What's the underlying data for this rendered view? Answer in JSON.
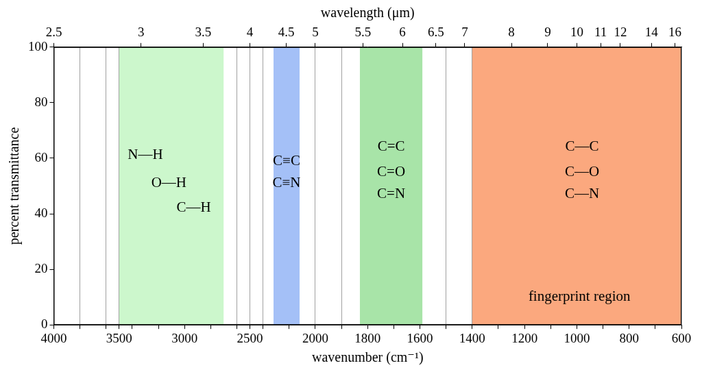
{
  "chart_data": {
    "type": "area",
    "xlabel": "wavenumber (cm⁻¹)",
    "x2label": "wavelength (μm)",
    "ylabel": "percent transmittance",
    "xlim": [
      4000,
      600
    ],
    "xbreak": 2000,
    "xticks": [
      4000,
      3500,
      3000,
      2500,
      2000,
      1800,
      1600,
      1400,
      1200,
      1000,
      800,
      600
    ],
    "xgrid_lines": [
      3800,
      3600,
      3400,
      3200,
      3000,
      2800,
      2600,
      2400,
      2200,
      2000,
      1900,
      1800,
      1700,
      1600,
      1500,
      1400,
      1300,
      1200,
      1100,
      1000,
      900,
      800,
      700
    ],
    "x2lim": [
      2.5,
      16.67
    ],
    "x2ticks": [
      2.5,
      3,
      3.5,
      4,
      4.5,
      5,
      5.5,
      6,
      6.5,
      7,
      8,
      9,
      10,
      11,
      12,
      14,
      16
    ],
    "ylim": [
      0,
      100
    ],
    "yticks": [
      0,
      20,
      40,
      60,
      80,
      100
    ],
    "grid": true,
    "bands": [
      {
        "from": 3500,
        "to": 2700,
        "color": "#ccf7cc"
      },
      {
        "from": 2320,
        "to": 2120,
        "color": "#a4c0f7"
      },
      {
        "from": 1830,
        "to": 1590,
        "color": "#a8e4a8"
      },
      {
        "from": 1400,
        "to": 600,
        "color": "#fba87e"
      }
    ],
    "annotations": [
      {
        "text": "N—H",
        "x": 3300,
        "y": 61
      },
      {
        "text": "O—H",
        "x": 3120,
        "y": 51
      },
      {
        "text": "C—H",
        "x": 2930,
        "y": 42
      },
      {
        "text": "C≡C",
        "x": 2220,
        "y": 59
      },
      {
        "text": "C≡N",
        "x": 2220,
        "y": 51
      },
      {
        "text": "C=C",
        "x": 1710,
        "y": 64
      },
      {
        "text": "C=O",
        "x": 1710,
        "y": 55
      },
      {
        "text": "C=N",
        "x": 1710,
        "y": 47
      },
      {
        "text": "C—C",
        "x": 980,
        "y": 64
      },
      {
        "text": "C—O",
        "x": 980,
        "y": 55
      },
      {
        "text": "C—N",
        "x": 980,
        "y": 47
      },
      {
        "text": "fingerprint region",
        "x": 990,
        "y": 10
      }
    ]
  }
}
